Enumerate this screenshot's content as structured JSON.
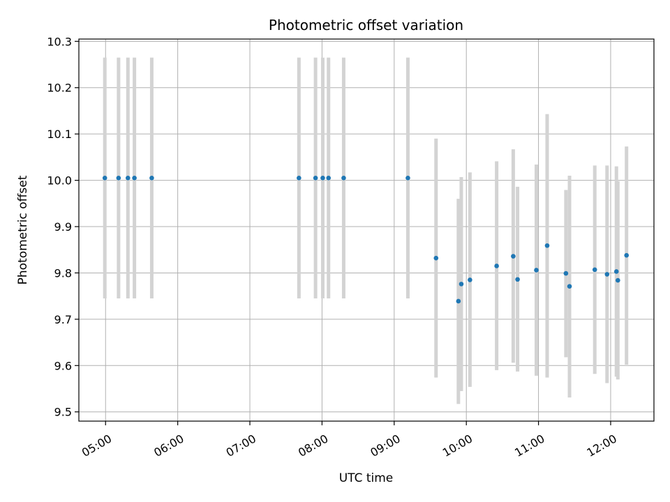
{
  "chart_data": {
    "type": "scatter",
    "title": "Photometric offset variation",
    "xlabel": "UTC time",
    "ylabel": "Photometric offset",
    "x_unit": "hours UTC",
    "xlim": [
      4.63,
      12.6
    ],
    "ylim": [
      9.48,
      10.305
    ],
    "grid": true,
    "x_ticks": [
      {
        "value": 5,
        "label": "05:00"
      },
      {
        "value": 6,
        "label": "06:00"
      },
      {
        "value": 7,
        "label": "07:00"
      },
      {
        "value": 8,
        "label": "08:00"
      },
      {
        "value": 9,
        "label": "09:00"
      },
      {
        "value": 10,
        "label": "10:00"
      },
      {
        "value": 11,
        "label": "11:00"
      },
      {
        "value": 12,
        "label": "12:00"
      }
    ],
    "y_ticks": [
      {
        "value": 9.5,
        "label": "9.5"
      },
      {
        "value": 9.6,
        "label": "9.6"
      },
      {
        "value": 9.7,
        "label": "9.7"
      },
      {
        "value": 9.8,
        "label": "9.8"
      },
      {
        "value": 9.9,
        "label": "9.9"
      },
      {
        "value": 10.0,
        "label": "10.0"
      },
      {
        "value": 10.1,
        "label": "10.1"
      },
      {
        "value": 10.2,
        "label": "10.2"
      },
      {
        "value": 10.3,
        "label": "10.3"
      }
    ],
    "colors": {
      "point": "#1f77b4",
      "errorbar": "#d3d3d3",
      "grid": "#b0b0b0"
    },
    "points": [
      {
        "x": 4.99,
        "y": 10.005,
        "y_low": 9.745,
        "y_high": 10.265
      },
      {
        "x": 5.18,
        "y": 10.005,
        "y_low": 9.745,
        "y_high": 10.265
      },
      {
        "x": 5.31,
        "y": 10.005,
        "y_low": 9.745,
        "y_high": 10.265
      },
      {
        "x": 5.4,
        "y": 10.005,
        "y_low": 9.745,
        "y_high": 10.265
      },
      {
        "x": 5.64,
        "y": 10.005,
        "y_low": 9.745,
        "y_high": 10.265
      },
      {
        "x": 7.68,
        "y": 10.005,
        "y_low": 9.745,
        "y_high": 10.265
      },
      {
        "x": 7.91,
        "y": 10.005,
        "y_low": 9.745,
        "y_high": 10.265
      },
      {
        "x": 8.01,
        "y": 10.005,
        "y_low": 9.745,
        "y_high": 10.265
      },
      {
        "x": 8.09,
        "y": 10.005,
        "y_low": 9.745,
        "y_high": 10.265
      },
      {
        "x": 8.3,
        "y": 10.005,
        "y_low": 9.745,
        "y_high": 10.265
      },
      {
        "x": 9.19,
        "y": 10.005,
        "y_low": 9.745,
        "y_high": 10.265
      },
      {
        "x": 9.58,
        "y": 9.832,
        "y_low": 9.574,
        "y_high": 10.09
      },
      {
        "x": 9.89,
        "y": 9.739,
        "y_low": 9.517,
        "y_high": 9.96
      },
      {
        "x": 9.93,
        "y": 9.776,
        "y_low": 9.545,
        "y_high": 10.007
      },
      {
        "x": 10.05,
        "y": 9.785,
        "y_low": 9.554,
        "y_high": 10.017
      },
      {
        "x": 10.42,
        "y": 9.815,
        "y_low": 9.59,
        "y_high": 10.041
      },
      {
        "x": 10.65,
        "y": 9.836,
        "y_low": 9.606,
        "y_high": 10.067
      },
      {
        "x": 10.71,
        "y": 9.786,
        "y_low": 9.587,
        "y_high": 9.986
      },
      {
        "x": 10.97,
        "y": 9.806,
        "y_low": 9.578,
        "y_high": 10.034
      },
      {
        "x": 11.12,
        "y": 9.859,
        "y_low": 9.574,
        "y_high": 10.143
      },
      {
        "x": 11.38,
        "y": 9.799,
        "y_low": 9.618,
        "y_high": 9.979
      },
      {
        "x": 11.43,
        "y": 9.771,
        "y_low": 9.531,
        "y_high": 10.01
      },
      {
        "x": 11.78,
        "y": 9.807,
        "y_low": 9.582,
        "y_high": 10.032
      },
      {
        "x": 11.95,
        "y": 9.797,
        "y_low": 9.562,
        "y_high": 10.032
      },
      {
        "x": 12.08,
        "y": 9.803,
        "y_low": 9.576,
        "y_high": 10.03
      },
      {
        "x": 12.1,
        "y": 9.784,
        "y_low": 9.57,
        "y_high": 9.998
      },
      {
        "x": 12.22,
        "y": 9.838,
        "y_low": 9.602,
        "y_high": 10.073
      }
    ]
  }
}
